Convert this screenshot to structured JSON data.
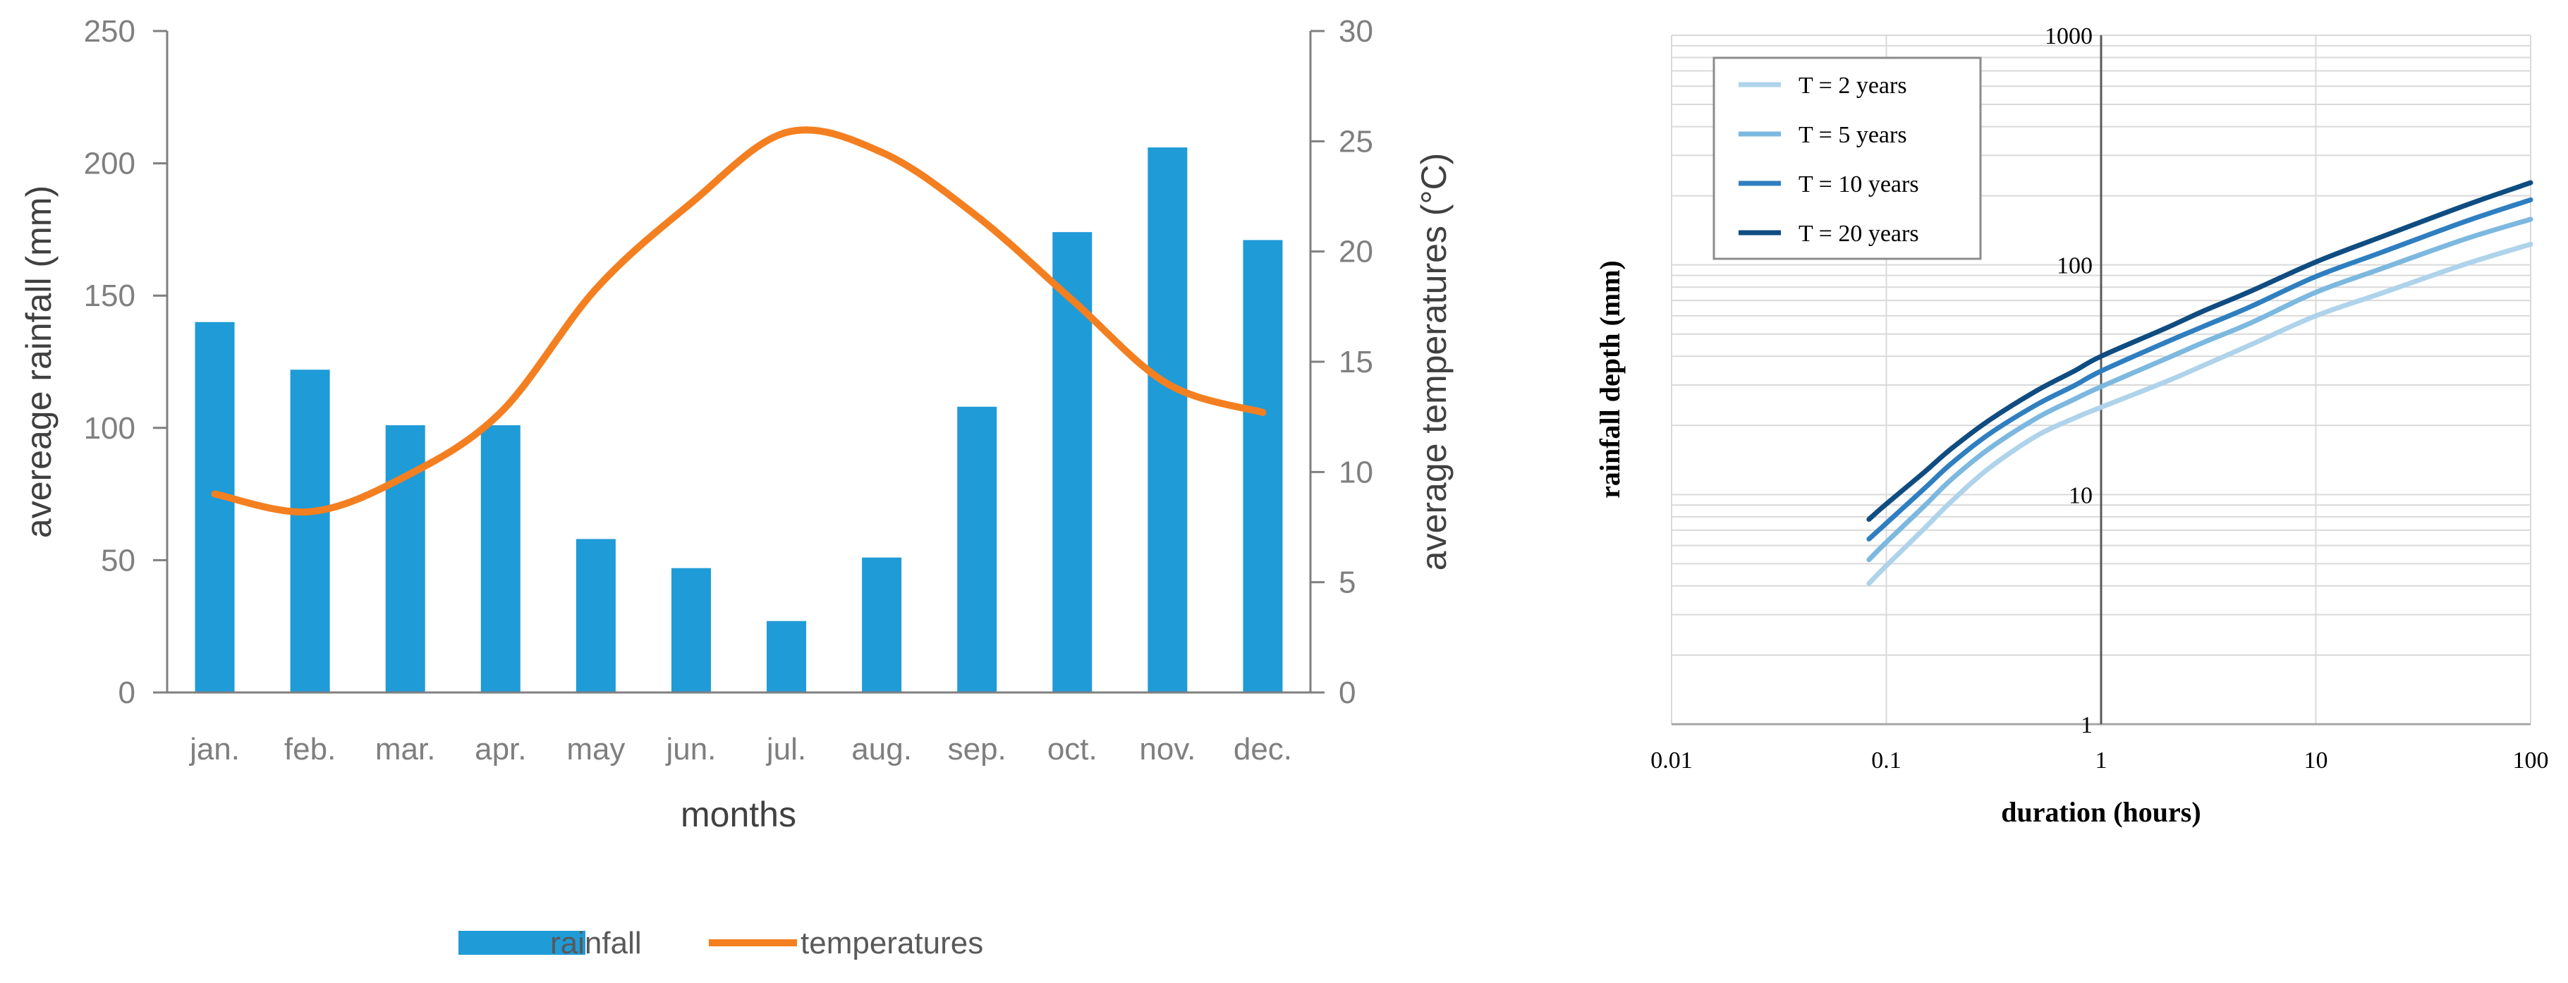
{
  "chart_data": [
    {
      "type": "bar+line",
      "title": "",
      "categories": [
        "jan.",
        "feb.",
        "mar.",
        "apr.",
        "may",
        "jun.",
        "jul.",
        "aug.",
        "sep.",
        "oct.",
        "nov.",
        "dec."
      ],
      "series": [
        {
          "name": "rainfall",
          "type": "bar",
          "axis": "left",
          "color": "#1f9bd7",
          "values": [
            140,
            122,
            101,
            101,
            58,
            47,
            27,
            51,
            108,
            174,
            206,
            171
          ]
        },
        {
          "name": "temperatures",
          "type": "line",
          "axis": "right",
          "color": "#f47f20",
          "values": [
            9.0,
            8.2,
            9.8,
            12.7,
            18.3,
            22.2,
            25.4,
            24.5,
            21.6,
            17.8,
            14.0,
            12.7
          ]
        }
      ],
      "xlabel": "months",
      "ylabel": "avereage rainfall (mm)",
      "y2label": "average temperatures (°C)",
      "ylim": [
        0,
        250
      ],
      "y2lim": [
        0,
        30
      ],
      "yticks": [
        "0",
        "50",
        "100",
        "150",
        "200",
        "250"
      ],
      "y2ticks": [
        "0",
        "5",
        "10",
        "15",
        "20",
        "25",
        "30"
      ],
      "legend_position": "bottom",
      "grid": false
    },
    {
      "type": "line",
      "scale": "log-log",
      "title": "",
      "xlabel": "duration (hours)",
      "ylabel": "rainfall depth (mm)",
      "xlim": [
        0.01,
        100
      ],
      "ylim": [
        1,
        1000
      ],
      "xticks": [
        "0.01",
        "0.1",
        "1",
        "10",
        "100"
      ],
      "yticks": [
        "1",
        "10",
        "100",
        "1000"
      ],
      "legend_position": "top-left",
      "grid": true,
      "series": [
        {
          "name": "T = 2 years",
          "color": "#aed3ea",
          "x": [
            0.083,
            0.1,
            0.15,
            0.2,
            0.3,
            0.5,
            0.75,
            1,
            2,
            3,
            5,
            10,
            20,
            50,
            100
          ],
          "y": [
            4.1,
            4.9,
            7.1,
            9.3,
            13.0,
            18.0,
            21.5,
            24.0,
            31.0,
            36.5,
            45.0,
            60.0,
            75.0,
            101.0,
            123.0
          ]
        },
        {
          "name": "T = 5 years",
          "color": "#7cb8df",
          "x": [
            0.083,
            0.1,
            0.15,
            0.2,
            0.3,
            0.5,
            0.75,
            1,
            2,
            3,
            5,
            10,
            20,
            50,
            100
          ],
          "y": [
            5.2,
            6.2,
            8.9,
            11.6,
            15.8,
            21.5,
            26.0,
            29.5,
            39.0,
            46.0,
            56.0,
            76.0,
            96.0,
            130.0,
            158.0
          ]
        },
        {
          "name": "T = 10 years",
          "color": "#2f7fc0",
          "x": [
            0.083,
            0.1,
            0.15,
            0.2,
            0.3,
            0.5,
            0.75,
            1,
            2,
            3,
            5,
            10,
            20,
            50,
            100
          ],
          "y": [
            6.4,
            7.5,
            10.6,
            13.6,
            18.3,
            24.6,
            29.8,
            34.5,
            46.0,
            54.0,
            66.0,
            89.0,
            113.0,
            155.0,
            192.0
          ]
        },
        {
          "name": "T = 20 years",
          "color": "#0f4c81",
          "x": [
            0.083,
            0.1,
            0.15,
            0.2,
            0.3,
            0.5,
            0.75,
            1,
            2,
            3,
            5,
            10,
            20,
            50,
            100
          ],
          "y": [
            7.8,
            9.1,
            12.5,
            15.8,
            21.0,
            28.3,
            34.5,
            40.0,
            53.0,
            63.0,
            77.0,
            103.0,
            132.0,
            182.0,
            228.0
          ]
        }
      ]
    }
  ]
}
